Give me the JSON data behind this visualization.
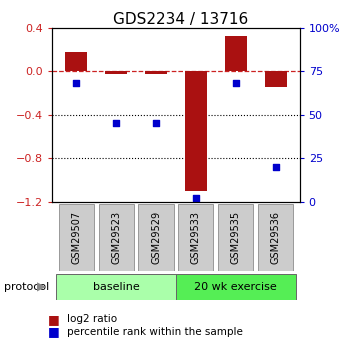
{
  "title": "GDS2234 / 13716",
  "samples": [
    "GSM29507",
    "GSM29523",
    "GSM29529",
    "GSM29533",
    "GSM29535",
    "GSM29536"
  ],
  "log2_ratio": [
    0.18,
    -0.03,
    -0.03,
    -1.1,
    0.32,
    -0.15
  ],
  "percentile_rank": [
    68,
    45,
    45,
    2,
    68,
    20
  ],
  "groups": [
    {
      "label": "baseline",
      "start": 0,
      "end": 3,
      "color": "#aaffaa"
    },
    {
      "label": "20 wk exercise",
      "start": 3,
      "end": 6,
      "color": "#55ee55"
    }
  ],
  "ylim_left": [
    -1.2,
    0.4
  ],
  "ylim_right": [
    0,
    100
  ],
  "yticks_left": [
    0.4,
    0.0,
    -0.4,
    -0.8,
    -1.2
  ],
  "yticks_right": [
    100,
    75,
    50,
    25,
    0
  ],
  "bar_color": "#aa1111",
  "dot_color": "#0000cc",
  "hline_color": "#cc2222",
  "dotline_color": "#000000",
  "bg_color": "#ffffff",
  "protocol_label": "protocol",
  "legend_bar": "log2 ratio",
  "legend_dot": "percentile rank within the sample",
  "title_fontsize": 11,
  "tick_fontsize": 8,
  "label_fontsize": 8
}
